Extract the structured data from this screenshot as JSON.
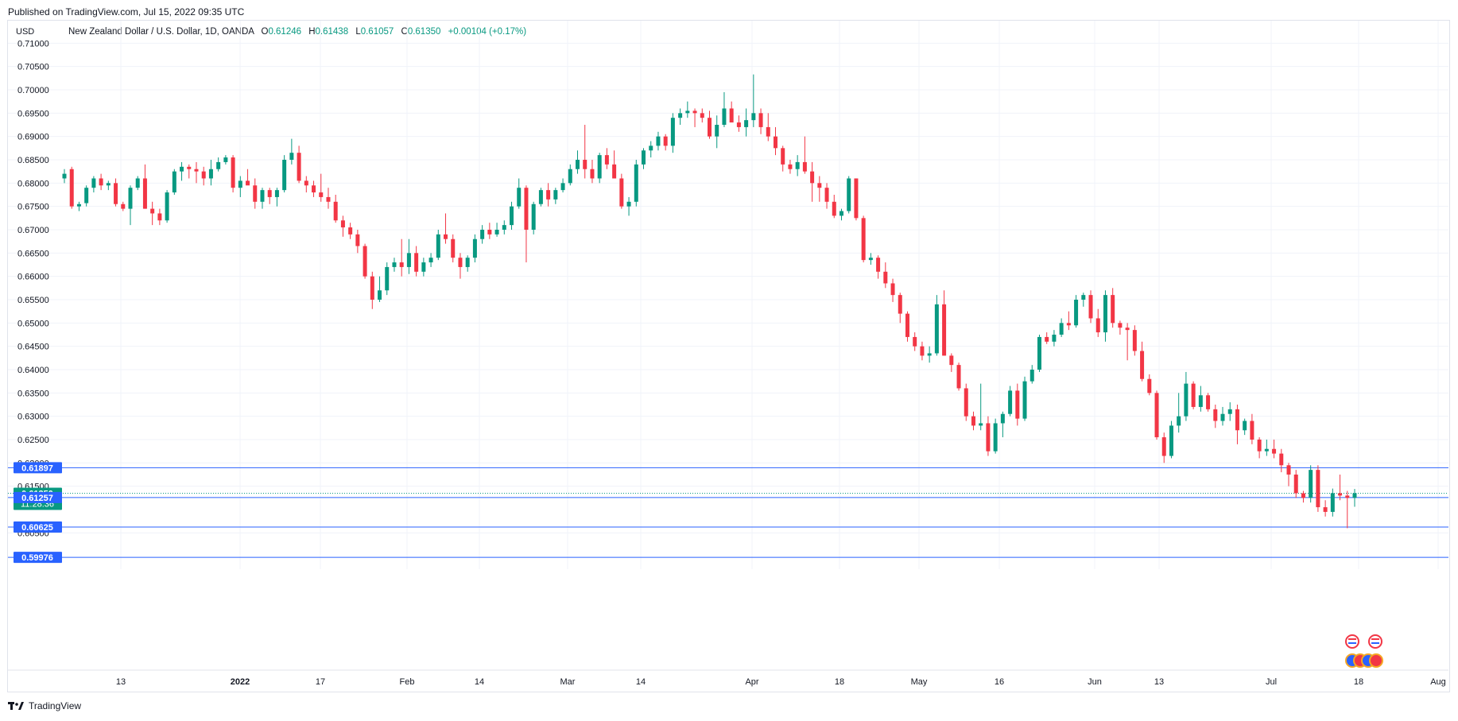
{
  "header": {
    "published": "Published on TradingView.com, Jul 15, 2022 09:35 UTC"
  },
  "legend": {
    "currency": "USD",
    "title": "New Zealand Dollar / U.S. Dollar, 1D, OANDA",
    "o_label": "O",
    "o": "0.61246",
    "h_label": "H",
    "h": "0.61438",
    "l_label": "L",
    "l": "0.61057",
    "c_label": "C",
    "c": "0.61350",
    "change": "+0.00104 (+0.17%)"
  },
  "footer": {
    "brand": "TradingView"
  },
  "colors": {
    "up": "#089981",
    "down": "#f23645",
    "level": "#2962ff",
    "grid": "#f0f3fa",
    "axis_text": "#131722"
  },
  "chart_data": {
    "type": "candlestick",
    "ylim": [
      0.59976,
      0.70979
    ],
    "y_ticks": [
      "0.71000",
      "0.70500",
      "0.70000",
      "0.69500",
      "0.69000",
      "0.68500",
      "0.68000",
      "0.67500",
      "0.67000",
      "0.66500",
      "0.66000",
      "0.65500",
      "0.65000",
      "0.64500",
      "0.64000",
      "0.63500",
      "0.63000",
      "0.62500",
      "0.62000",
      "0.61500",
      "0.60500"
    ],
    "x_ticks": [
      "13",
      "2022",
      "17",
      "Feb",
      "14",
      "Mar",
      "14",
      "Apr",
      "18",
      "May",
      "16",
      "Jun",
      "13",
      "Jul",
      "18",
      "Aug"
    ],
    "price_labels": [
      {
        "value": 0.61897,
        "text": "0.61897",
        "kind": "level"
      },
      {
        "value": 0.6135,
        "text": "0.61350",
        "sub": "11:28:36",
        "kind": "current"
      },
      {
        "value": 0.61257,
        "text": "0.61257",
        "kind": "level"
      },
      {
        "value": 0.60625,
        "text": "0.60625",
        "kind": "level"
      },
      {
        "value": 0.59976,
        "text": "0.59976",
        "kind": "level"
      }
    ],
    "candles": [
      [
        0.681,
        0.683,
        0.68,
        0.682
      ],
      [
        0.683,
        0.6835,
        0.6745,
        0.675
      ],
      [
        0.675,
        0.676,
        0.674,
        0.6755
      ],
      [
        0.6757,
        0.6795,
        0.675,
        0.679
      ],
      [
        0.679,
        0.6815,
        0.678,
        0.681
      ],
      [
        0.681,
        0.682,
        0.6785,
        0.6795
      ],
      [
        0.6795,
        0.6805,
        0.6785,
        0.68
      ],
      [
        0.68,
        0.681,
        0.675,
        0.6755
      ],
      [
        0.6755,
        0.676,
        0.674,
        0.6745
      ],
      [
        0.6745,
        0.6795,
        0.671,
        0.679
      ],
      [
        0.679,
        0.6815,
        0.6785,
        0.681
      ],
      [
        0.681,
        0.684,
        0.6745,
        0.6745
      ],
      [
        0.6745,
        0.676,
        0.671,
        0.6735
      ],
      [
        0.6735,
        0.6745,
        0.671,
        0.672
      ],
      [
        0.672,
        0.6785,
        0.6715,
        0.678
      ],
      [
        0.678,
        0.683,
        0.6775,
        0.6825
      ],
      [
        0.6825,
        0.6845,
        0.6805,
        0.6835
      ],
      [
        0.6835,
        0.684,
        0.681,
        0.683
      ],
      [
        0.683,
        0.6845,
        0.68,
        0.6825
      ],
      [
        0.6825,
        0.6835,
        0.6795,
        0.681
      ],
      [
        0.681,
        0.685,
        0.6795,
        0.683
      ],
      [
        0.683,
        0.6855,
        0.6825,
        0.6845
      ],
      [
        0.6845,
        0.686,
        0.684,
        0.6855
      ],
      [
        0.6855,
        0.686,
        0.678,
        0.679
      ],
      [
        0.679,
        0.6815,
        0.677,
        0.6805
      ],
      [
        0.6805,
        0.683,
        0.68,
        0.6795
      ],
      [
        0.6795,
        0.681,
        0.6745,
        0.676
      ],
      [
        0.676,
        0.679,
        0.6745,
        0.6785
      ],
      [
        0.6785,
        0.679,
        0.6755,
        0.677
      ],
      [
        0.677,
        0.679,
        0.675,
        0.6785
      ],
      [
        0.6785,
        0.686,
        0.678,
        0.685
      ],
      [
        0.685,
        0.6895,
        0.684,
        0.6865
      ],
      [
        0.6865,
        0.688,
        0.68,
        0.6805
      ],
      [
        0.6805,
        0.6815,
        0.678,
        0.6795
      ],
      [
        0.6795,
        0.6805,
        0.677,
        0.678
      ],
      [
        0.678,
        0.682,
        0.676,
        0.677
      ],
      [
        0.677,
        0.679,
        0.6745,
        0.676
      ],
      [
        0.676,
        0.6775,
        0.6715,
        0.672
      ],
      [
        0.672,
        0.673,
        0.6685,
        0.6705
      ],
      [
        0.6705,
        0.6715,
        0.668,
        0.669
      ],
      [
        0.669,
        0.67,
        0.665,
        0.6665
      ],
      [
        0.6665,
        0.667,
        0.6595,
        0.66
      ],
      [
        0.66,
        0.661,
        0.653,
        0.655
      ],
      [
        0.655,
        0.66,
        0.6545,
        0.657
      ],
      [
        0.657,
        0.663,
        0.656,
        0.662
      ],
      [
        0.662,
        0.664,
        0.661,
        0.663
      ],
      [
        0.663,
        0.668,
        0.66,
        0.662
      ],
      [
        0.662,
        0.668,
        0.6605,
        0.665
      ],
      [
        0.665,
        0.6665,
        0.66,
        0.661
      ],
      [
        0.661,
        0.664,
        0.66,
        0.663
      ],
      [
        0.663,
        0.665,
        0.662,
        0.664
      ],
      [
        0.664,
        0.67,
        0.6635,
        0.669
      ],
      [
        0.669,
        0.6735,
        0.667,
        0.668
      ],
      [
        0.668,
        0.669,
        0.663,
        0.664
      ],
      [
        0.664,
        0.665,
        0.6595,
        0.662
      ],
      [
        0.662,
        0.6645,
        0.661,
        0.664
      ],
      [
        0.664,
        0.669,
        0.663,
        0.668
      ],
      [
        0.668,
        0.671,
        0.667,
        0.67
      ],
      [
        0.67,
        0.6715,
        0.668,
        0.669
      ],
      [
        0.669,
        0.6715,
        0.6685,
        0.67
      ],
      [
        0.67,
        0.672,
        0.669,
        0.671
      ],
      [
        0.671,
        0.676,
        0.67,
        0.675
      ],
      [
        0.675,
        0.681,
        0.6745,
        0.679
      ],
      [
        0.679,
        0.6795,
        0.663,
        0.67
      ],
      [
        0.67,
        0.676,
        0.669,
        0.6755
      ],
      [
        0.6755,
        0.679,
        0.675,
        0.6785
      ],
      [
        0.6785,
        0.68,
        0.675,
        0.6765
      ],
      [
        0.6765,
        0.679,
        0.6755,
        0.6785
      ],
      [
        0.6785,
        0.681,
        0.678,
        0.68
      ],
      [
        0.68,
        0.684,
        0.6795,
        0.683
      ],
      [
        0.683,
        0.687,
        0.682,
        0.685
      ],
      [
        0.685,
        0.6925,
        0.681,
        0.683
      ],
      [
        0.683,
        0.685,
        0.68,
        0.681
      ],
      [
        0.681,
        0.6865,
        0.68,
        0.686
      ],
      [
        0.686,
        0.6875,
        0.683,
        0.684
      ],
      [
        0.684,
        0.687,
        0.681,
        0.681
      ],
      [
        0.681,
        0.682,
        0.6745,
        0.675
      ],
      [
        0.675,
        0.677,
        0.673,
        0.676
      ],
      [
        0.676,
        0.685,
        0.675,
        0.684
      ],
      [
        0.684,
        0.6875,
        0.683,
        0.687
      ],
      [
        0.687,
        0.689,
        0.6855,
        0.688
      ],
      [
        0.688,
        0.691,
        0.687,
        0.69
      ],
      [
        0.69,
        0.6905,
        0.687,
        0.688
      ],
      [
        0.688,
        0.695,
        0.6865,
        0.694
      ],
      [
        0.694,
        0.696,
        0.6925,
        0.695
      ],
      [
        0.695,
        0.6975,
        0.694,
        0.6955
      ],
      [
        0.6955,
        0.696,
        0.692,
        0.695
      ],
      [
        0.695,
        0.696,
        0.693,
        0.694
      ],
      [
        0.694,
        0.6955,
        0.6895,
        0.69
      ],
      [
        0.69,
        0.6945,
        0.6875,
        0.6925
      ],
      [
        0.6925,
        0.6995,
        0.692,
        0.696
      ],
      [
        0.696,
        0.6975,
        0.6935,
        0.693
      ],
      [
        0.693,
        0.6945,
        0.691,
        0.692
      ],
      [
        0.692,
        0.696,
        0.69,
        0.6935
      ],
      [
        0.6935,
        0.7033,
        0.692,
        0.695
      ],
      [
        0.695,
        0.696,
        0.6905,
        0.692
      ],
      [
        0.692,
        0.695,
        0.689,
        0.69
      ],
      [
        0.69,
        0.692,
        0.686,
        0.6875
      ],
      [
        0.6875,
        0.688,
        0.6825,
        0.684
      ],
      [
        0.684,
        0.685,
        0.682,
        0.683
      ],
      [
        0.683,
        0.686,
        0.6815,
        0.6845
      ],
      [
        0.6845,
        0.69,
        0.682,
        0.6825
      ],
      [
        0.6825,
        0.6845,
        0.676,
        0.68
      ],
      [
        0.68,
        0.6815,
        0.676,
        0.679
      ],
      [
        0.679,
        0.68,
        0.6745,
        0.676
      ],
      [
        0.676,
        0.6775,
        0.6725,
        0.673
      ],
      [
        0.673,
        0.6745,
        0.672,
        0.674
      ],
      [
        0.674,
        0.6815,
        0.6735,
        0.681
      ],
      [
        0.681,
        0.681,
        0.672,
        0.6725
      ],
      [
        0.6725,
        0.673,
        0.663,
        0.6635
      ],
      [
        0.6635,
        0.665,
        0.6625,
        0.664
      ],
      [
        0.664,
        0.6645,
        0.6595,
        0.661
      ],
      [
        0.661,
        0.663,
        0.6575,
        0.6585
      ],
      [
        0.6585,
        0.6595,
        0.6545,
        0.656
      ],
      [
        0.656,
        0.6565,
        0.65,
        0.652
      ],
      [
        0.652,
        0.6525,
        0.646,
        0.647
      ],
      [
        0.647,
        0.648,
        0.644,
        0.645
      ],
      [
        0.645,
        0.646,
        0.642,
        0.643
      ],
      [
        0.643,
        0.645,
        0.6415,
        0.6435
      ],
      [
        0.6435,
        0.656,
        0.643,
        0.654
      ],
      [
        0.654,
        0.657,
        0.643,
        0.643
      ],
      [
        0.643,
        0.6435,
        0.6395,
        0.641
      ],
      [
        0.641,
        0.6415,
        0.6355,
        0.636
      ],
      [
        0.636,
        0.637,
        0.629,
        0.63
      ],
      [
        0.63,
        0.631,
        0.627,
        0.628
      ],
      [
        0.628,
        0.637,
        0.627,
        0.6285
      ],
      [
        0.6285,
        0.63,
        0.6215,
        0.6225
      ],
      [
        0.6225,
        0.6295,
        0.622,
        0.6285
      ],
      [
        0.6285,
        0.631,
        0.6255,
        0.6305
      ],
      [
        0.6305,
        0.6365,
        0.63,
        0.6355
      ],
      [
        0.6355,
        0.637,
        0.628,
        0.6295
      ],
      [
        0.6295,
        0.6385,
        0.629,
        0.6375
      ],
      [
        0.6375,
        0.641,
        0.637,
        0.64
      ],
      [
        0.64,
        0.6475,
        0.6395,
        0.647
      ],
      [
        0.647,
        0.648,
        0.6455,
        0.646
      ],
      [
        0.646,
        0.6485,
        0.645,
        0.6475
      ],
      [
        0.6475,
        0.651,
        0.647,
        0.65
      ],
      [
        0.65,
        0.6525,
        0.6485,
        0.6495
      ],
      [
        0.6495,
        0.656,
        0.649,
        0.655
      ],
      [
        0.655,
        0.6565,
        0.6535,
        0.656
      ],
      [
        0.656,
        0.657,
        0.65,
        0.651
      ],
      [
        0.651,
        0.653,
        0.647,
        0.648
      ],
      [
        0.648,
        0.657,
        0.646,
        0.656
      ],
      [
        0.656,
        0.6575,
        0.649,
        0.65
      ],
      [
        0.65,
        0.6505,
        0.6475,
        0.649
      ],
      [
        0.649,
        0.65,
        0.642,
        0.6485
      ],
      [
        0.6485,
        0.6495,
        0.643,
        0.644
      ],
      [
        0.644,
        0.646,
        0.6375,
        0.638
      ],
      [
        0.638,
        0.639,
        0.6345,
        0.635
      ],
      [
        0.635,
        0.6355,
        0.625,
        0.6255
      ],
      [
        0.6255,
        0.6265,
        0.62,
        0.6215
      ],
      [
        0.6215,
        0.629,
        0.621,
        0.628
      ],
      [
        0.628,
        0.635,
        0.6265,
        0.63
      ],
      [
        0.63,
        0.6395,
        0.629,
        0.637
      ],
      [
        0.637,
        0.6375,
        0.6315,
        0.632
      ],
      [
        0.632,
        0.6365,
        0.631,
        0.6345
      ],
      [
        0.6345,
        0.635,
        0.631,
        0.6315
      ],
      [
        0.6315,
        0.6325,
        0.6275,
        0.629
      ],
      [
        0.629,
        0.632,
        0.628,
        0.6305
      ],
      [
        0.6305,
        0.633,
        0.629,
        0.6315
      ],
      [
        0.6315,
        0.6325,
        0.624,
        0.627
      ],
      [
        0.627,
        0.6295,
        0.626,
        0.629
      ],
      [
        0.629,
        0.6305,
        0.624,
        0.625
      ],
      [
        0.625,
        0.6255,
        0.621,
        0.6225
      ],
      [
        0.6225,
        0.625,
        0.6215,
        0.623
      ],
      [
        0.623,
        0.625,
        0.621,
        0.622
      ],
      [
        0.622,
        0.623,
        0.618,
        0.6195
      ],
      [
        0.6195,
        0.62,
        0.615,
        0.6175
      ],
      [
        0.6175,
        0.6185,
        0.6125,
        0.6135
      ],
      [
        0.6135,
        0.614,
        0.6115,
        0.6125
      ],
      [
        0.6125,
        0.6195,
        0.6115,
        0.6185
      ],
      [
        0.6185,
        0.6195,
        0.6095,
        0.6105
      ],
      [
        0.6105,
        0.612,
        0.6085,
        0.6095
      ],
      [
        0.6095,
        0.6145,
        0.6085,
        0.6135
      ],
      [
        0.6135,
        0.6175,
        0.612,
        0.613
      ],
      [
        0.613,
        0.614,
        0.606,
        0.6125
      ],
      [
        0.6125,
        0.6144,
        0.6106,
        0.6135
      ]
    ]
  }
}
